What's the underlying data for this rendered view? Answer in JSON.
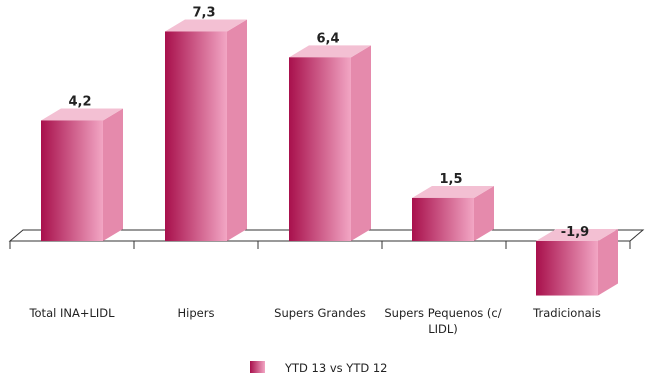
{
  "chart_data": {
    "type": "bar",
    "style": "3d-column",
    "categories": [
      "Total INA+LIDL",
      "Hipers",
      "Supers Grandes",
      "Supers Pequenos (c/ LIDL)",
      "Tradicionais"
    ],
    "category_lines": [
      [
        "Total INA+LIDL"
      ],
      [
        "Hipers"
      ],
      [
        "Supers Grandes"
      ],
      [
        "Supers Pequenos (c/",
        "LIDL)"
      ],
      [
        "Tradicionais"
      ]
    ],
    "series": [
      {
        "name": "YTD 13 vs YTD 12",
        "values": [
          4.2,
          7.3,
          6.4,
          1.5,
          -1.9
        ],
        "labels": [
          "4,2",
          "7,3",
          "6,4",
          "1,5",
          "-1,9"
        ]
      }
    ],
    "ylim": [
      -1.9,
      7.3
    ],
    "grid": false,
    "legend_position": "bottom",
    "colors": {
      "front_dark": "#a8104c",
      "front_light": "#f2a6c4",
      "side": "#e58aac",
      "top": "#f3c0d3",
      "floor": "#ffffff",
      "axis": "#333333"
    }
  }
}
